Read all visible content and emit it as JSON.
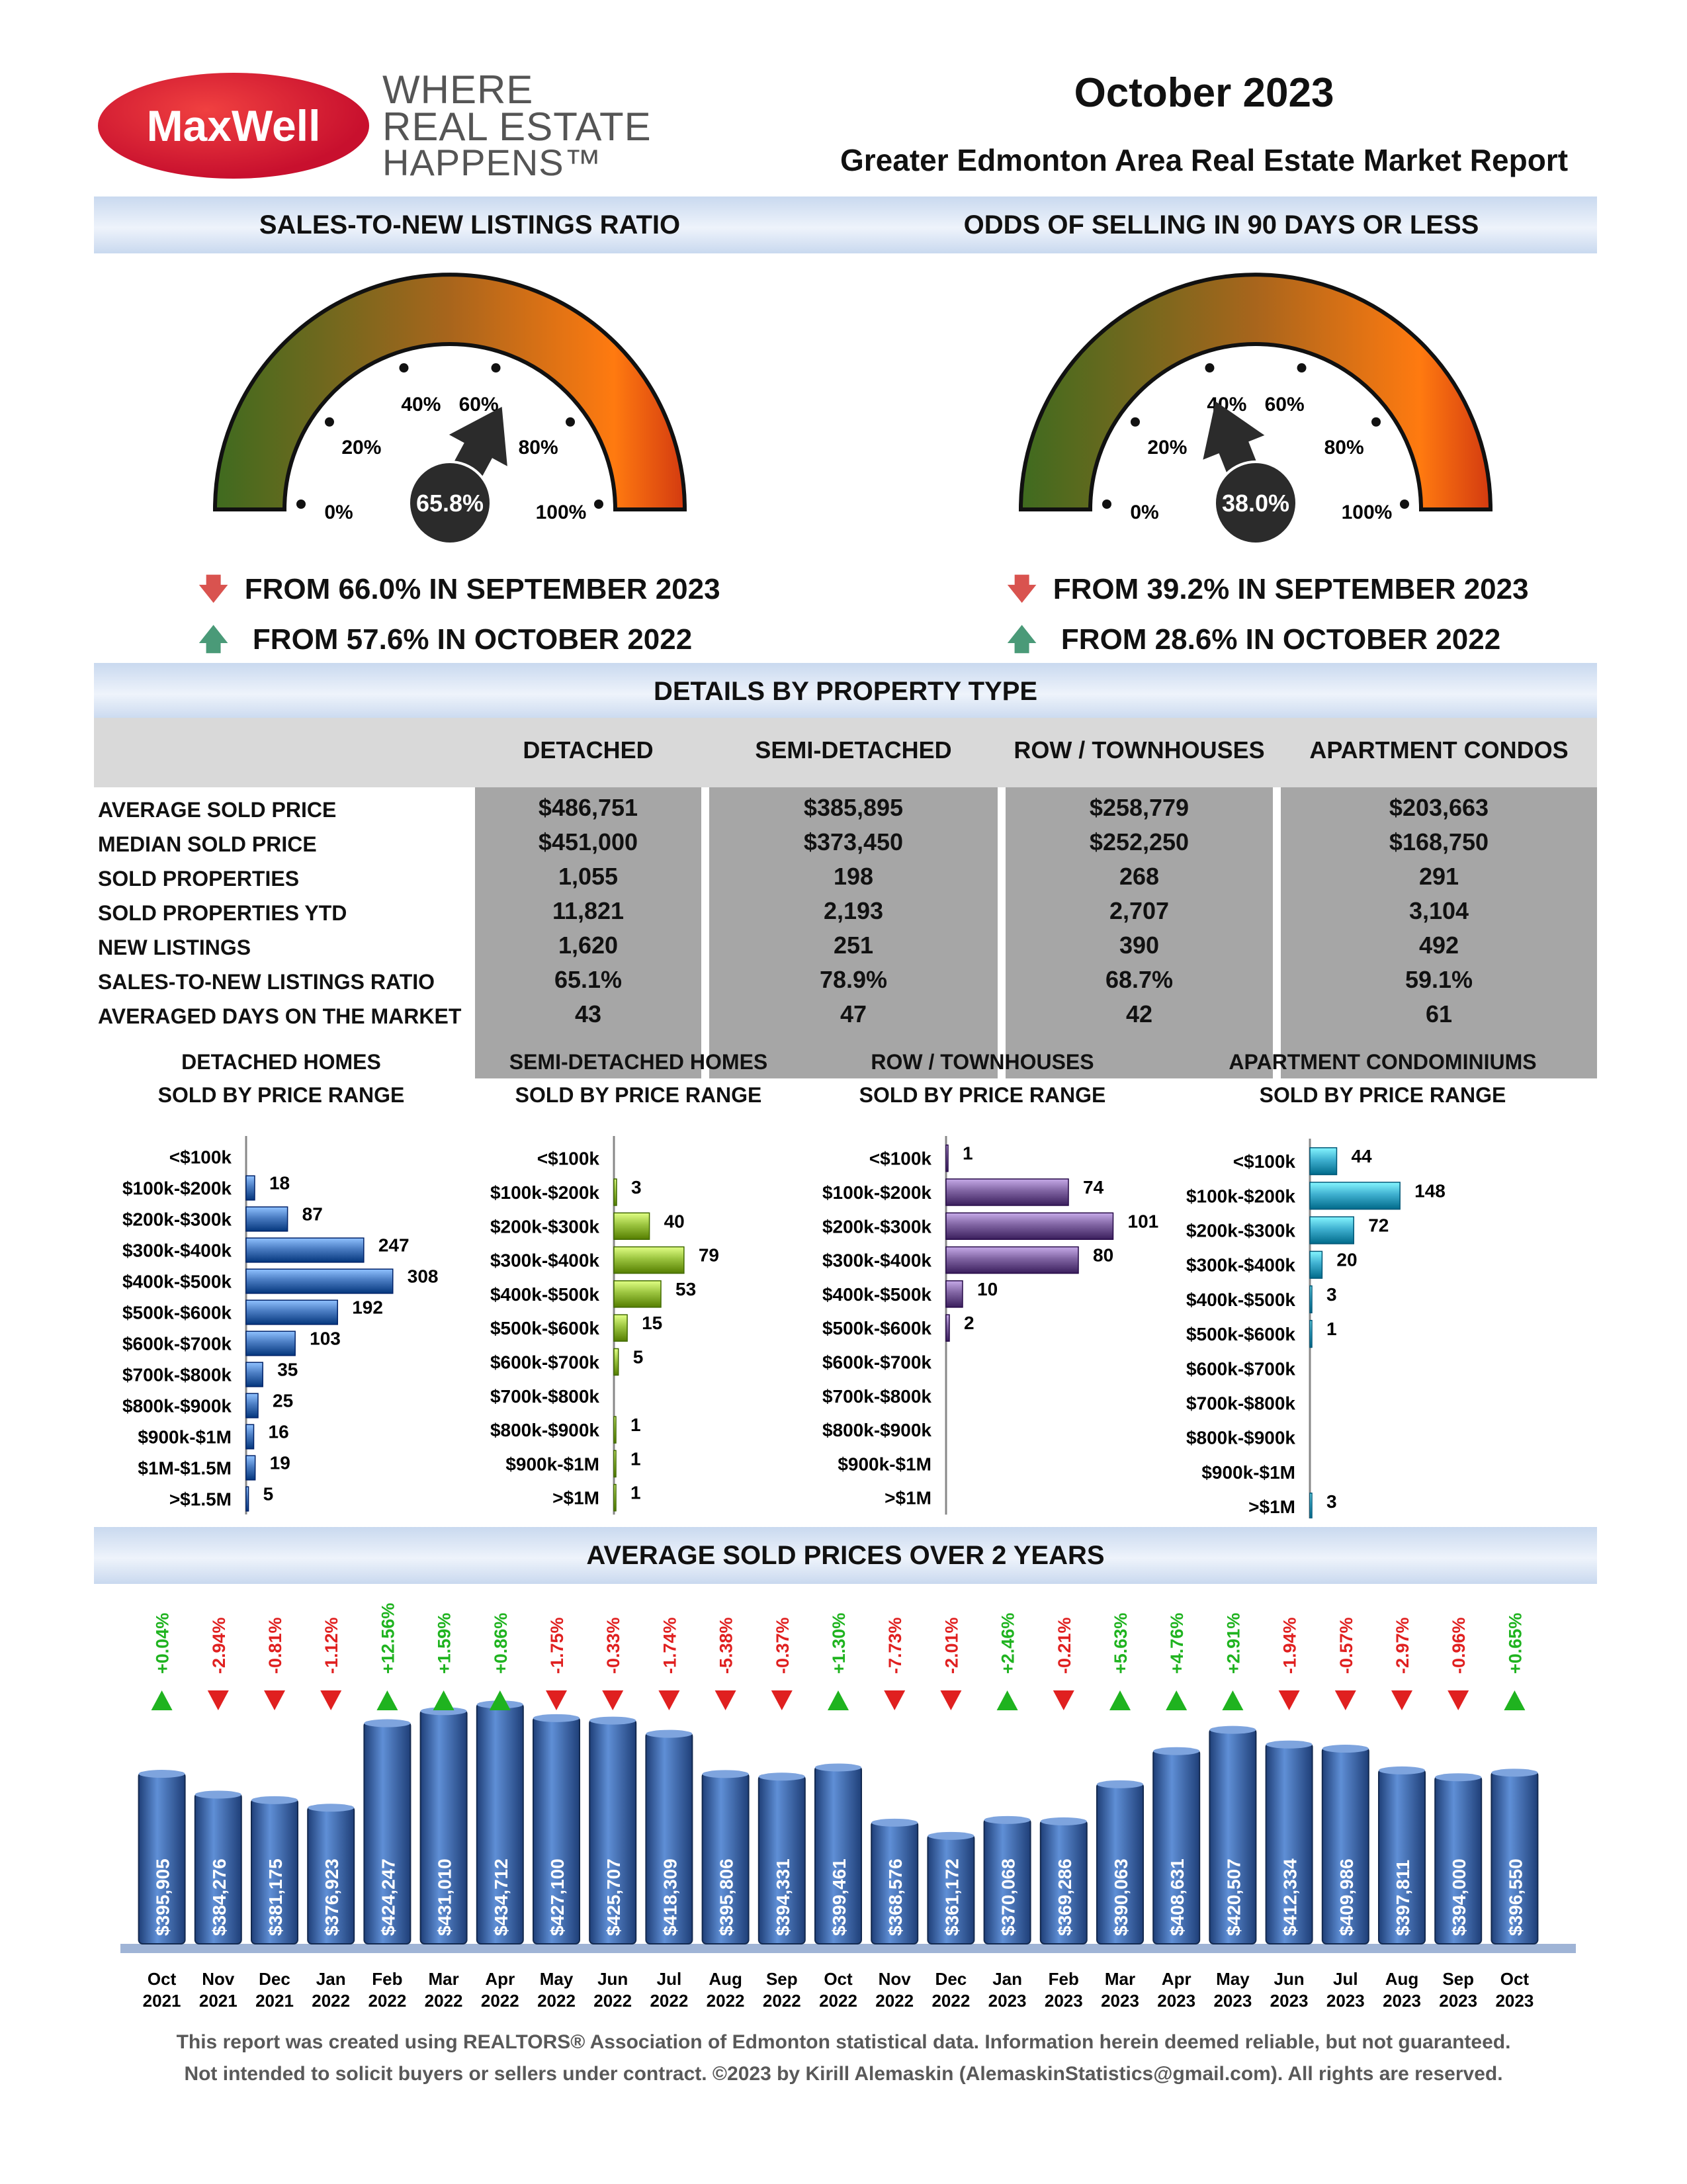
{
  "logo": {
    "brand": "MaxWell",
    "tagline_lines": [
      "WHERE",
      "REAL ESTATE",
      "HAPPENS™"
    ]
  },
  "header": {
    "month": "October 2023",
    "title": "Greater Edmonton Area Real Estate Market Report"
  },
  "sections": {
    "sales_ratio": "SALES-TO-NEW LISTINGS RATIO",
    "odds": "ODDS OF SELLING IN 90 DAYS OR LESS",
    "details": "DETAILS BY PROPERTY TYPE",
    "avg_prices": "AVERAGE SOLD PRICES OVER 2 YEARS"
  },
  "gauges": [
    {
      "value": 65.8,
      "value_label": "65.8%",
      "ticks": [
        "0%",
        "20%",
        "40%",
        "60%",
        "80%",
        "100%"
      ],
      "change1": "FROM 66.0% IN SEPTEMBER 2023",
      "change1_dir": "down",
      "change2": "FROM 57.6% IN OCTOBER 2022",
      "change2_dir": "up"
    },
    {
      "value": 38.0,
      "value_label": "38.0%",
      "ticks": [
        "0%",
        "20%",
        "40%",
        "60%",
        "80%",
        "100%"
      ],
      "change1": "FROM 39.2% IN SEPTEMBER 2023",
      "change1_dir": "down",
      "change2": "FROM 28.6% IN OCTOBER 2022",
      "change2_dir": "up"
    }
  ],
  "property_table": {
    "columns": [
      "DETACHED",
      "SEMI-DETACHED",
      "ROW / TOWNHOUSES",
      "APARTMENT CONDOS"
    ],
    "rows": [
      {
        "label": "AVERAGE SOLD PRICE",
        "values": [
          "$486,751",
          "$385,895",
          "$258,779",
          "$203,663"
        ]
      },
      {
        "label": "MEDIAN SOLD PRICE",
        "values": [
          "$451,000",
          "$373,450",
          "$252,250",
          "$168,750"
        ]
      },
      {
        "label": "SOLD PROPERTIES",
        "values": [
          "1,055",
          "198",
          "268",
          "291"
        ]
      },
      {
        "label": "SOLD PROPERTIES YTD",
        "values": [
          "11,821",
          "2,193",
          "2,707",
          "3,104"
        ]
      },
      {
        "label": "NEW LISTINGS",
        "values": [
          "1,620",
          "251",
          "390",
          "492"
        ]
      },
      {
        "label": "SALES-TO-NEW LISTINGS RATIO",
        "values": [
          "65.1%",
          "78.9%",
          "68.7%",
          "59.1%"
        ]
      },
      {
        "label": "AVERAGED DAYS ON THE MARKET",
        "values": [
          "43",
          "47",
          "42",
          "61"
        ]
      }
    ]
  },
  "chart_data": [
    {
      "type": "bar",
      "orientation": "horizontal",
      "title": "DETACHED HOMES\nSOLD BY PRICE RANGE",
      "title_lines": [
        "DETACHED HOMES",
        "SOLD BY PRICE RANGE"
      ],
      "color": "#4a7cc2",
      "categories": [
        "<$100k",
        "$100k-$200k",
        "$200k-$300k",
        "$300k-$400k",
        "$400k-$500k",
        "$500k-$600k",
        "$600k-$700k",
        "$700k-$800k",
        "$800k-$900k",
        "$900k-$1M",
        "$1M-$1.5M",
        ">$1.5M"
      ],
      "values": [
        null,
        18,
        87,
        247,
        308,
        192,
        103,
        35,
        25,
        16,
        19,
        5
      ]
    },
    {
      "type": "bar",
      "orientation": "horizontal",
      "title_lines": [
        "SEMI-DETACHED HOMES",
        "SOLD BY PRICE RANGE"
      ],
      "color": "#9bc43f",
      "categories": [
        "<$100k",
        "$100k-$200k",
        "$200k-$300k",
        "$300k-$400k",
        "$400k-$500k",
        "$500k-$600k",
        "$600k-$700k",
        "$700k-$800k",
        "$800k-$900k",
        "$900k-$1M",
        ">$1M"
      ],
      "values": [
        null,
        3,
        40,
        79,
        53,
        15,
        5,
        null,
        1,
        1,
        1
      ]
    },
    {
      "type": "bar",
      "orientation": "horizontal",
      "title_lines": [
        "ROW / TOWNHOUSES",
        "SOLD BY PRICE RANGE"
      ],
      "color": "#8064a2",
      "categories": [
        "<$100k",
        "$100k-$200k",
        "$200k-$300k",
        "$300k-$400k",
        "$400k-$500k",
        "$500k-$600k",
        "$600k-$700k",
        "$700k-$800k",
        "$800k-$900k",
        "$900k-$1M",
        ">$1M"
      ],
      "values": [
        1,
        74,
        101,
        80,
        10,
        2,
        null,
        null,
        null,
        null,
        null
      ]
    },
    {
      "type": "bar",
      "orientation": "horizontal",
      "title_lines": [
        "APARTMENT CONDOMINIUMS",
        "SOLD BY PRICE RANGE"
      ],
      "color": "#3fb0d0",
      "categories": [
        "<$100k",
        "$100k-$200k",
        "$200k-$300k",
        "$300k-$400k",
        "$400k-$500k",
        "$500k-$600k",
        "$600k-$700k",
        "$700k-$800k",
        "$800k-$900k",
        "$900k-$1M",
        ">$1M"
      ],
      "values": [
        44,
        148,
        72,
        20,
        3,
        1,
        null,
        null,
        null,
        null,
        3
      ]
    },
    {
      "type": "bar",
      "orientation": "vertical",
      "title": "AVERAGE SOLD PRICES OVER 2 YEARS",
      "color": "#3e6eb4",
      "categories": [
        [
          "Oct",
          "2021"
        ],
        [
          "Nov",
          "2021"
        ],
        [
          "Dec",
          "2021"
        ],
        [
          "Jan",
          "2022"
        ],
        [
          "Feb",
          "2022"
        ],
        [
          "Mar",
          "2022"
        ],
        [
          "Apr",
          "2022"
        ],
        [
          "May",
          "2022"
        ],
        [
          "Jun",
          "2022"
        ],
        [
          "Jul",
          "2022"
        ],
        [
          "Aug",
          "2022"
        ],
        [
          "Sep",
          "2022"
        ],
        [
          "Oct",
          "2022"
        ],
        [
          "Nov",
          "2022"
        ],
        [
          "Dec",
          "2022"
        ],
        [
          "Jan",
          "2023"
        ],
        [
          "Feb",
          "2023"
        ],
        [
          "Mar",
          "2023"
        ],
        [
          "Apr",
          "2023"
        ],
        [
          "May",
          "2023"
        ],
        [
          "Jun",
          "2023"
        ],
        [
          "Jul",
          "2023"
        ],
        [
          "Aug",
          "2023"
        ],
        [
          "Sep",
          "2023"
        ],
        [
          "Oct",
          "2023"
        ]
      ],
      "values": [
        395905,
        384276,
        381175,
        376923,
        424247,
        431010,
        434712,
        427100,
        425707,
        418309,
        395806,
        394331,
        399461,
        368576,
        361172,
        370068,
        369286,
        390063,
        408631,
        420507,
        412334,
        409986,
        397811,
        394000,
        396550
      ],
      "value_labels": [
        "$395,905",
        "$384,276",
        "$381,175",
        "$376,923",
        "$424,247",
        "$431,010",
        "$434,712",
        "$427,100",
        "$425,707",
        "$418,309",
        "$395,806",
        "$394,331",
        "$399,461",
        "$368,576",
        "$361,172",
        "$370,068",
        "$369,286",
        "$390,063",
        "$408,631",
        "$420,507",
        "$412,334",
        "$409,986",
        "$397,811",
        "$394,000",
        "$396,550"
      ],
      "changes": [
        "+0.04%",
        "-2.94%",
        "-0.81%",
        "-1.12%",
        "+12.56%",
        "+1.59%",
        "+0.86%",
        "-1.75%",
        "-0.33%",
        "-1.74%",
        "-5.38%",
        "-0.37%",
        "+1.30%",
        "-7.73%",
        "-2.01%",
        "+2.46%",
        "-0.21%",
        "+5.63%",
        "+4.76%",
        "+2.91%",
        "-1.94%",
        "-0.57%",
        "-2.97%",
        "-0.96%",
        "+0.65%"
      ],
      "colors": {
        "up": "#1fb31f",
        "down": "#e02020"
      }
    }
  ],
  "footer": [
    "This report was created using REALTORS® Association of Edmonton statistical data. Information herein deemed reliable, but not guaranteed.",
    "Not intended to solicit buyers or sellers under contract. ©2023 by Kirill Alemaskin (AlemaskinStatistics@gmail.com). All rights are reserved."
  ]
}
